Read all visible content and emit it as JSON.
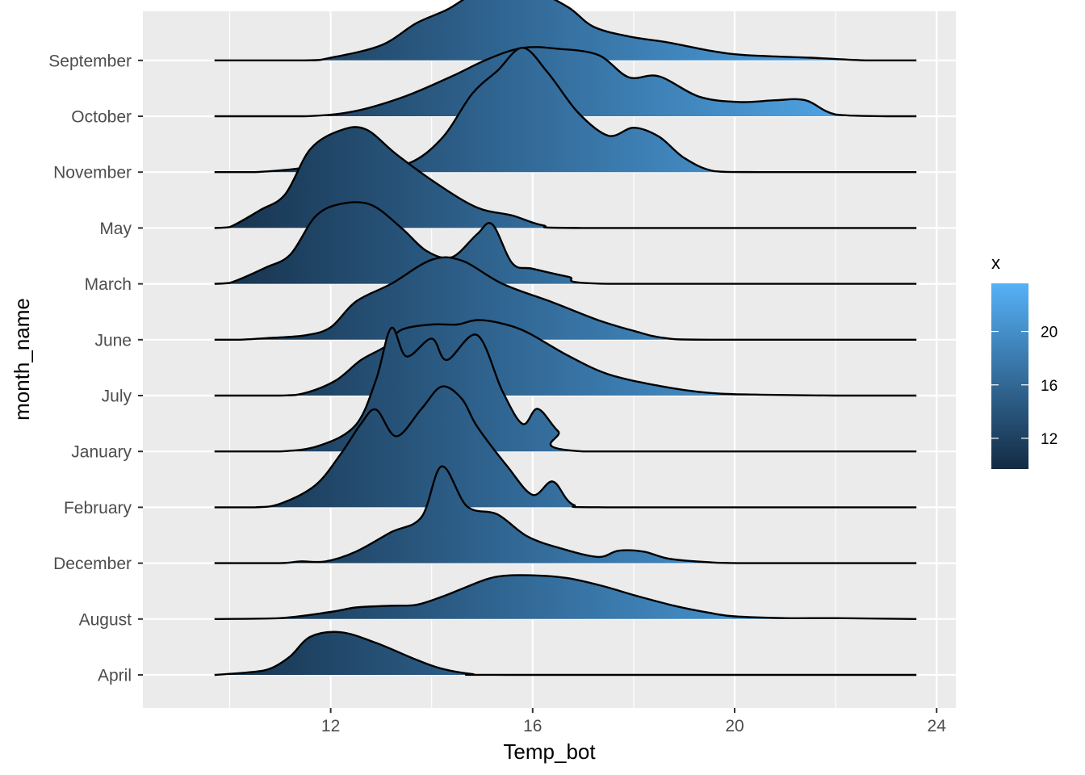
{
  "chart_data": {
    "type": "ridgeline",
    "xlabel": "Temp_bot",
    "ylabel": "month_name",
    "xlim": [
      8.95,
      24.35
    ],
    "x_ticks": [
      12,
      16,
      20,
      24
    ],
    "data_x_range": [
      9.7,
      23.6
    ],
    "grid": true,
    "legend": {
      "title": "x",
      "position": "right",
      "range": [
        9.7,
        23.6
      ],
      "ticks": [
        12,
        16,
        20
      ],
      "color_low": "#132B43",
      "color_high": "#56B1F7"
    },
    "series": [
      {
        "name": "April",
        "points": [
          [
            9.7,
            0
          ],
          [
            10.4,
            0.03
          ],
          [
            10.8,
            0.07
          ],
          [
            11.2,
            0.21
          ],
          [
            11.6,
            0.43
          ],
          [
            12.2,
            0.48
          ],
          [
            12.9,
            0.36
          ],
          [
            13.7,
            0.17
          ],
          [
            14.2,
            0.07
          ],
          [
            14.8,
            0.01
          ],
          [
            15.5,
            0
          ],
          [
            23.6,
            0
          ]
        ]
      },
      {
        "name": "August",
        "points": [
          [
            9.7,
            0
          ],
          [
            11.0,
            0.01
          ],
          [
            12.0,
            0.08
          ],
          [
            12.5,
            0.13
          ],
          [
            13.2,
            0.15
          ],
          [
            13.7,
            0.16
          ],
          [
            14.2,
            0.25
          ],
          [
            14.6,
            0.34
          ],
          [
            15.1,
            0.45
          ],
          [
            15.5,
            0.49
          ],
          [
            16.1,
            0.49
          ],
          [
            16.7,
            0.46
          ],
          [
            17.4,
            0.37
          ],
          [
            18.0,
            0.27
          ],
          [
            18.8,
            0.15
          ],
          [
            19.5,
            0.07
          ],
          [
            20.0,
            0.03
          ],
          [
            21.0,
            0.01
          ],
          [
            22.0,
            0.01
          ],
          [
            23.6,
            0
          ]
        ]
      },
      {
        "name": "December",
        "points": [
          [
            9.7,
            0
          ],
          [
            11.0,
            0
          ],
          [
            11.4,
            0.02
          ],
          [
            11.9,
            0.02
          ],
          [
            12.5,
            0.13
          ],
          [
            13.2,
            0.35
          ],
          [
            13.8,
            0.52
          ],
          [
            14.2,
            1.09
          ],
          [
            14.7,
            0.64
          ],
          [
            15.3,
            0.55
          ],
          [
            15.9,
            0.3
          ],
          [
            16.6,
            0.16
          ],
          [
            17.3,
            0.07
          ],
          [
            17.7,
            0.14
          ],
          [
            18.2,
            0.13
          ],
          [
            18.7,
            0.05
          ],
          [
            19.5,
            0.01
          ],
          [
            20.3,
            0
          ],
          [
            23.6,
            0
          ]
        ]
      },
      {
        "name": "February",
        "points": [
          [
            9.7,
            0
          ],
          [
            10.5,
            0
          ],
          [
            11.0,
            0.04
          ],
          [
            11.7,
            0.25
          ],
          [
            12.2,
            0.6
          ],
          [
            12.6,
            0.94
          ],
          [
            12.9,
            1.1
          ],
          [
            13.3,
            0.8
          ],
          [
            13.8,
            1.11
          ],
          [
            14.2,
            1.36
          ],
          [
            14.6,
            1.22
          ],
          [
            14.9,
            0.91
          ],
          [
            15.5,
            0.46
          ],
          [
            16.0,
            0.14
          ],
          [
            16.4,
            0.29
          ],
          [
            16.8,
            0.03
          ],
          [
            17.5,
            0
          ],
          [
            23.6,
            0
          ]
        ]
      },
      {
        "name": "January",
        "points": [
          [
            9.7,
            0
          ],
          [
            11.0,
            0
          ],
          [
            11.8,
            0.07
          ],
          [
            12.5,
            0.3
          ],
          [
            12.9,
            0.81
          ],
          [
            13.2,
            1.39
          ],
          [
            13.5,
            1.07
          ],
          [
            14.0,
            1.27
          ],
          [
            14.3,
            1.03
          ],
          [
            14.9,
            1.31
          ],
          [
            15.4,
            0.68
          ],
          [
            15.8,
            0.31
          ],
          [
            16.1,
            0.48
          ],
          [
            16.5,
            0.23
          ],
          [
            17.0,
            0
          ],
          [
            23.6,
            0
          ]
        ]
      },
      {
        "name": "July",
        "points": [
          [
            9.7,
            0
          ],
          [
            11.0,
            0
          ],
          [
            11.5,
            0.03
          ],
          [
            12.1,
            0.17
          ],
          [
            12.6,
            0.4
          ],
          [
            13.1,
            0.56
          ],
          [
            13.4,
            0.74
          ],
          [
            14.0,
            0.8
          ],
          [
            14.5,
            0.8
          ],
          [
            14.9,
            0.85
          ],
          [
            15.4,
            0.81
          ],
          [
            15.9,
            0.71
          ],
          [
            16.7,
            0.45
          ],
          [
            17.5,
            0.24
          ],
          [
            18.5,
            0.11
          ],
          [
            19.5,
            0.03
          ],
          [
            20.5,
            0.01
          ],
          [
            22.0,
            0
          ],
          [
            23.6,
            0
          ]
        ]
      },
      {
        "name": "June",
        "points": [
          [
            9.7,
            0
          ],
          [
            10.2,
            0
          ],
          [
            10.8,
            0.02
          ],
          [
            11.5,
            0.05
          ],
          [
            12.0,
            0.14
          ],
          [
            12.5,
            0.43
          ],
          [
            13.2,
            0.63
          ],
          [
            14.0,
            0.9
          ],
          [
            14.6,
            0.89
          ],
          [
            15.4,
            0.63
          ],
          [
            16.4,
            0.42
          ],
          [
            17.3,
            0.22
          ],
          [
            18.0,
            0.1
          ],
          [
            18.6,
            0.02
          ],
          [
            19.5,
            0
          ],
          [
            23.6,
            0
          ]
        ]
      },
      {
        "name": "March",
        "points": [
          [
            9.7,
            0
          ],
          [
            10.0,
            0.01
          ],
          [
            10.7,
            0.18
          ],
          [
            11.2,
            0.33
          ],
          [
            11.7,
            0.76
          ],
          [
            12.2,
            0.9
          ],
          [
            12.8,
            0.89
          ],
          [
            13.4,
            0.63
          ],
          [
            13.9,
            0.37
          ],
          [
            14.4,
            0.3
          ],
          [
            14.9,
            0.56
          ],
          [
            15.2,
            0.67
          ],
          [
            15.6,
            0.23
          ],
          [
            16.0,
            0.17
          ],
          [
            16.7,
            0.08
          ],
          [
            17.5,
            0
          ],
          [
            23.6,
            0
          ]
        ]
      },
      {
        "name": "May",
        "points": [
          [
            9.7,
            0
          ],
          [
            10.0,
            0.01
          ],
          [
            10.6,
            0.2
          ],
          [
            11.1,
            0.38
          ],
          [
            11.6,
            0.89
          ],
          [
            12.2,
            1.1
          ],
          [
            12.7,
            1.11
          ],
          [
            13.3,
            0.83
          ],
          [
            14.1,
            0.5
          ],
          [
            14.9,
            0.23
          ],
          [
            15.6,
            0.14
          ],
          [
            16.2,
            0.03
          ],
          [
            17.0,
            0
          ],
          [
            23.6,
            0
          ]
        ]
      },
      {
        "name": "November",
        "points": [
          [
            9.7,
            0
          ],
          [
            10.5,
            0
          ],
          [
            11.2,
            0.03
          ],
          [
            11.9,
            0.07
          ],
          [
            12.5,
            0.05
          ],
          [
            13.5,
            0.09
          ],
          [
            14.2,
            0.38
          ],
          [
            14.8,
            0.88
          ],
          [
            15.3,
            1.14
          ],
          [
            15.8,
            1.4
          ],
          [
            16.3,
            1.12
          ],
          [
            16.9,
            0.67
          ],
          [
            17.5,
            0.41
          ],
          [
            18.0,
            0.5
          ],
          [
            18.5,
            0.4
          ],
          [
            19.0,
            0.16
          ],
          [
            19.6,
            0.01
          ],
          [
            20.5,
            0
          ],
          [
            23.6,
            0
          ]
        ]
      },
      {
        "name": "October",
        "points": [
          [
            9.7,
            0
          ],
          [
            11.5,
            0
          ],
          [
            12.5,
            0.06
          ],
          [
            13.5,
            0.23
          ],
          [
            14.4,
            0.45
          ],
          [
            15.1,
            0.64
          ],
          [
            15.8,
            0.77
          ],
          [
            16.5,
            0.76
          ],
          [
            17.3,
            0.69
          ],
          [
            17.9,
            0.44
          ],
          [
            18.5,
            0.45
          ],
          [
            19.3,
            0.22
          ],
          [
            20.1,
            0.16
          ],
          [
            20.8,
            0.18
          ],
          [
            21.4,
            0.18
          ],
          [
            22.0,
            0.02
          ],
          [
            23.0,
            0
          ],
          [
            23.6,
            0
          ]
        ]
      },
      {
        "name": "September",
        "points": [
          [
            9.7,
            0
          ],
          [
            11.5,
            0
          ],
          [
            12.0,
            0.03
          ],
          [
            13.0,
            0.17
          ],
          [
            13.7,
            0.42
          ],
          [
            14.3,
            0.57
          ],
          [
            14.8,
            0.74
          ],
          [
            15.3,
            0.83
          ],
          [
            16.0,
            0.79
          ],
          [
            16.7,
            0.6
          ],
          [
            17.2,
            0.38
          ],
          [
            17.9,
            0.27
          ],
          [
            18.7,
            0.2
          ],
          [
            19.5,
            0.11
          ],
          [
            20.2,
            0.06
          ],
          [
            21.5,
            0.03
          ],
          [
            22.6,
            0
          ],
          [
            23.6,
            0
          ]
        ]
      }
    ]
  }
}
